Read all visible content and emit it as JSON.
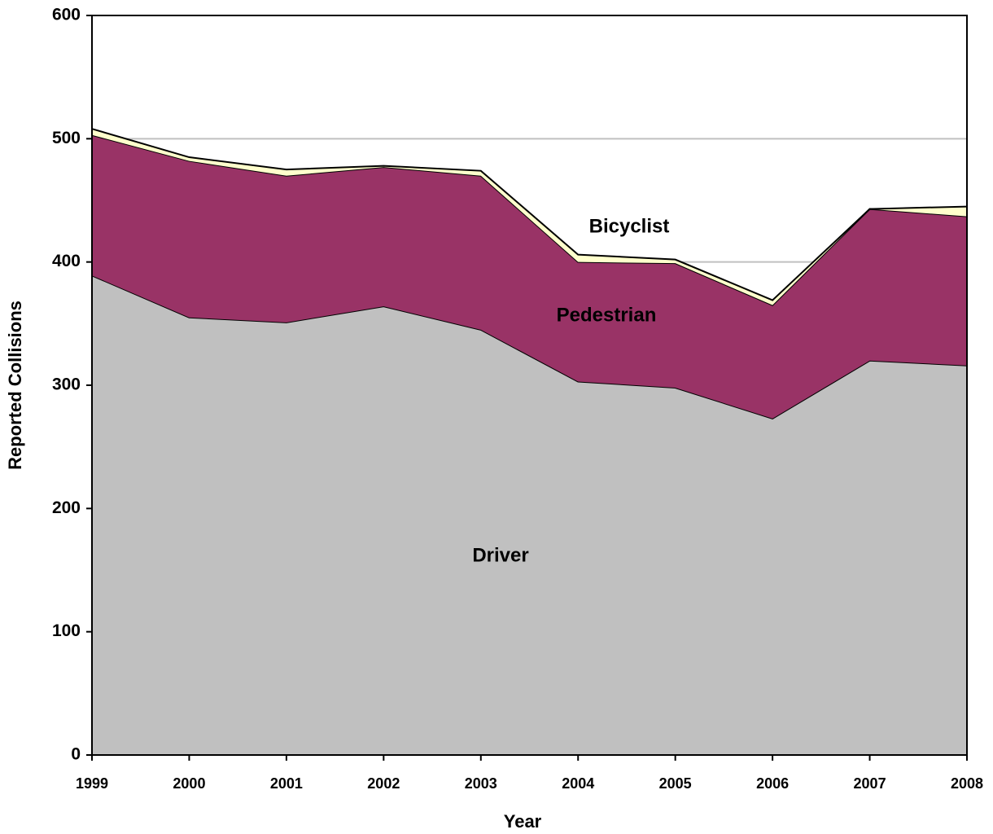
{
  "chart_data": {
    "type": "stacked_area",
    "x_label": "Year",
    "y_label": "Reported Collisions",
    "categories": [
      "1999",
      "2000",
      "2001",
      "2002",
      "2003",
      "2004",
      "2005",
      "2006",
      "2007",
      "2008"
    ],
    "series": [
      {
        "name": "Driver",
        "color": "#c0c0c0",
        "values": [
          389,
          355,
          351,
          364,
          345,
          303,
          298,
          273,
          320,
          316
        ]
      },
      {
        "name": "Pedestrian",
        "color": "#993366",
        "values": [
          114,
          127,
          119,
          113,
          125,
          97,
          101,
          92,
          123,
          121
        ]
      },
      {
        "name": "Bicyclist",
        "color": "#ffffcc",
        "values": [
          5,
          3,
          5,
          1,
          4,
          6,
          3,
          4,
          0,
          8
        ]
      }
    ],
    "ylim": [
      0,
      600
    ],
    "yticks": [
      0,
      100,
      200,
      300,
      400,
      500,
      600
    ],
    "grid": true
  }
}
